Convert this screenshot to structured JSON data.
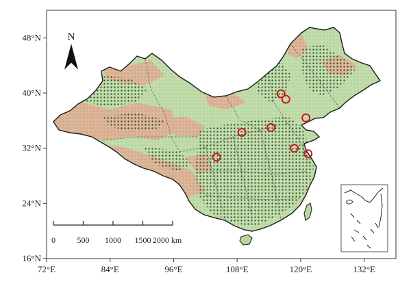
{
  "map": {
    "lon_ticks": [
      "72°E",
      "84°E",
      "96°E",
      "108°E",
      "120°E",
      "132°E"
    ],
    "lat_ticks": [
      "48°N",
      "40°N",
      "32°N",
      "24°N",
      "16°N"
    ],
    "north_label": "N",
    "scale_bar": {
      "labels": [
        "0",
        "500",
        "1000",
        "1500",
        "2000 km"
      ],
      "distances_km": [
        0,
        500,
        1000,
        1500,
        2000
      ]
    },
    "colors": {
      "land_light_green": "#b9d7a0",
      "land_tan": "#d9a789",
      "dot_dark": "#2f4a2c",
      "marker_red": "#d0181a",
      "frame": "#333333",
      "province_border": "#666666"
    },
    "red_circle_sites": [
      {
        "lon": 116.3,
        "lat": 39.9
      },
      {
        "lon": 117.2,
        "lat": 39.1
      },
      {
        "lon": 121.0,
        "lat": 36.4
      },
      {
        "lon": 114.4,
        "lat": 35.0
      },
      {
        "lon": 108.9,
        "lat": 34.3
      },
      {
        "lon": 104.1,
        "lat": 30.7
      },
      {
        "lon": 118.8,
        "lat": 32.0
      },
      {
        "lon": 121.4,
        "lat": 31.2
      }
    ]
  }
}
